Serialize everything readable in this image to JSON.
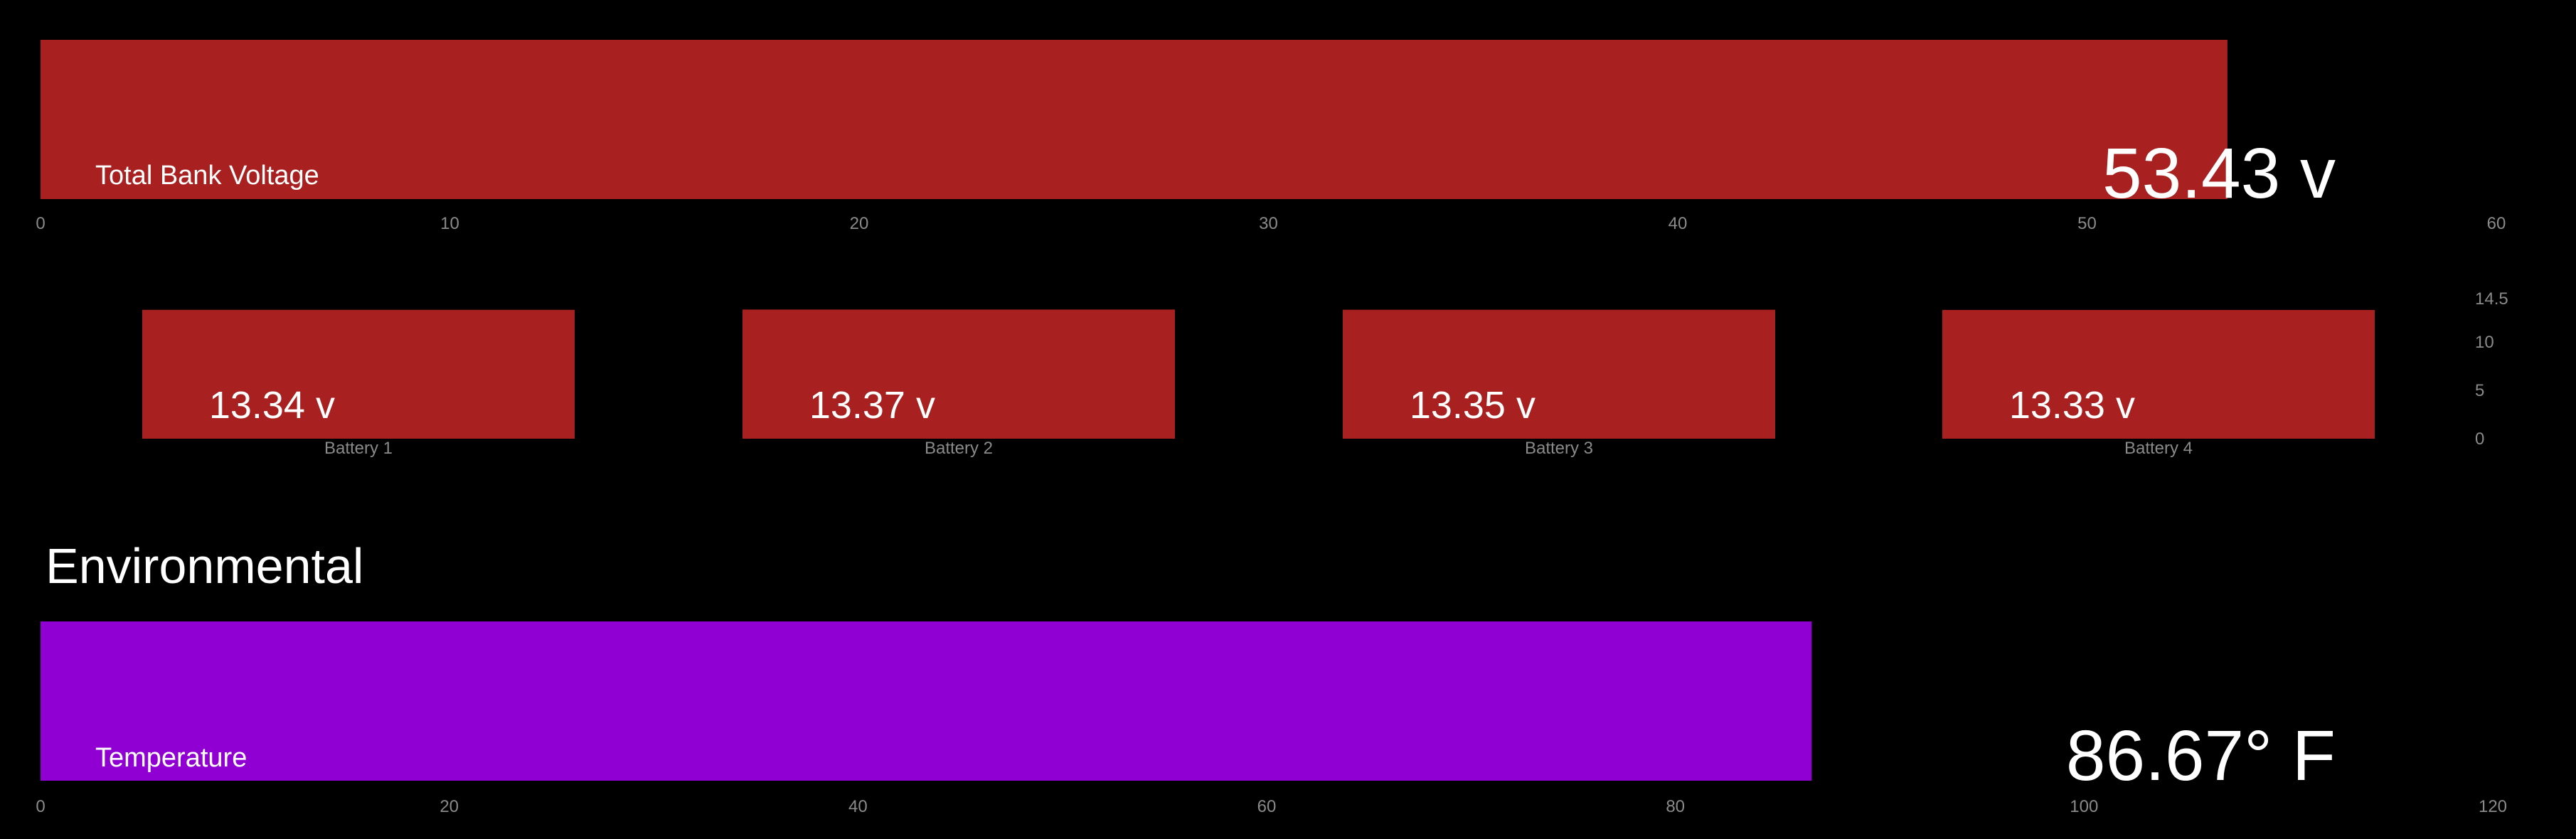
{
  "colors": {
    "background": "#000000",
    "voltage": "#a82020",
    "temperature": "#9000d3",
    "tick": "#8a8a8a",
    "text": "#ffffff"
  },
  "section_heading": "Environmental",
  "chart_data": [
    {
      "type": "bar",
      "orientation": "horizontal",
      "label": "Total Bank Voltage",
      "value": 53.43,
      "value_label": "53.43 v",
      "xlim": [
        0,
        60
      ],
      "ticks": [
        0,
        10,
        20,
        30,
        40,
        50,
        60
      ],
      "grid": false
    },
    {
      "type": "bar",
      "categories": [
        "Battery 1",
        "Battery 2",
        "Battery 3",
        "Battery 4"
      ],
      "values": [
        13.34,
        13.37,
        13.35,
        13.33
      ],
      "value_labels": [
        "13.34 v",
        "13.37 v",
        "13.35 v",
        "13.33 v"
      ],
      "ylim": [
        0,
        14.5
      ],
      "yticks": [
        0,
        5,
        10,
        14.5
      ],
      "grid": false
    },
    {
      "type": "bar",
      "orientation": "horizontal",
      "label": "Temperature",
      "value": 86.67,
      "value_label": "86.67° F",
      "xlim": [
        0,
        120
      ],
      "ticks": [
        0,
        20,
        40,
        60,
        80,
        100,
        120
      ],
      "grid": false
    }
  ]
}
